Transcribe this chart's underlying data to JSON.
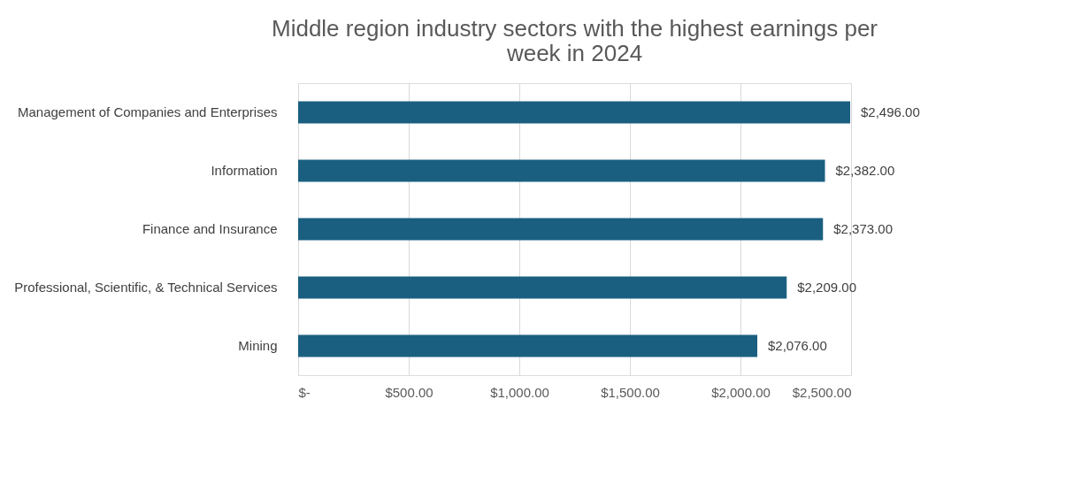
{
  "chart_data": {
    "type": "bar",
    "orientation": "horizontal",
    "title": "Middle region industry sectors with the highest earnings per week in 2024",
    "categories": [
      "Management of Companies and Enterprises",
      "Information",
      "Finance and Insurance",
      "Professional, Scientific, & Technical Services",
      "Mining"
    ],
    "values": [
      2496,
      2382,
      2373,
      2209,
      2076
    ],
    "value_labels": [
      "$2,496.00",
      "$2,382.00",
      "$2,373.00",
      "$2,209.00",
      "$2,076.00"
    ],
    "color": "#1a5f80",
    "xlim": [
      0,
      2500
    ],
    "xticks": [
      {
        "value": 0,
        "label": "$-"
      },
      {
        "value": 500,
        "label": "$500.00"
      },
      {
        "value": 1000,
        "label": "$1,000.00"
      },
      {
        "value": 1500,
        "label": "$1,500.00"
      },
      {
        "value": 2000,
        "label": "$2,000.00"
      },
      {
        "value": 2500,
        "label": "$2,500.00"
      }
    ],
    "grid": "x"
  }
}
